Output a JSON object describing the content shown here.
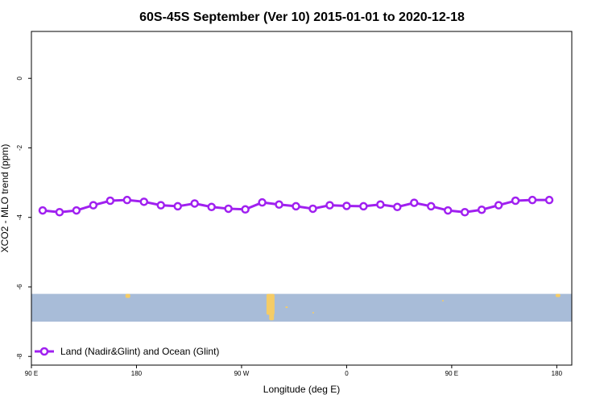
{
  "chart_data": {
    "type": "line",
    "title": "60S-45S September (Ver 10)   2015-01-01 to 2020-12-18",
    "xlabel": "Longitude (deg E)",
    "ylabel": "XCO2 - MLO trend (ppm)",
    "xlim": [
      90,
      450
    ],
    "ylim": [
      -8.25,
      1.35
    ],
    "x_ticks": [
      {
        "value": 90,
        "label": "90 E"
      },
      {
        "value": 160,
        "label": "180"
      },
      {
        "value": 230,
        "label": "90 W"
      },
      {
        "value": 300,
        "label": "0"
      },
      {
        "value": 370,
        "label": "90 E"
      },
      {
        "value": 440,
        "label": "180"
      }
    ],
    "y_ticks": [
      {
        "value": 0,
        "label": "0"
      },
      {
        "value": -2,
        "label": "-2"
      },
      {
        "value": -4,
        "label": "-4"
      },
      {
        "value": -6,
        "label": "-6"
      },
      {
        "value": -8,
        "label": "-8"
      }
    ],
    "series": [
      {
        "name": "Land (Nadir&Glint) and Ocean (Glint)",
        "color": "#a020f0",
        "x": [
          97.5,
          108.75,
          120,
          131.25,
          142.5,
          153.75,
          165,
          176.25,
          187.5,
          198.75,
          210,
          221.25,
          232.5,
          243.75,
          255,
          266.25,
          277.5,
          288.75,
          300,
          311.25,
          322.5,
          333.75,
          345,
          356.25,
          367.5,
          378.75,
          390,
          401.25,
          412.5,
          423.75,
          435
        ],
        "values": [
          -3.8,
          -3.85,
          -3.8,
          -3.65,
          -3.52,
          -3.5,
          -3.55,
          -3.65,
          -3.68,
          -3.6,
          -3.7,
          -3.75,
          -3.77,
          -3.57,
          -3.63,
          -3.68,
          -3.75,
          -3.65,
          -3.67,
          -3.68,
          -3.63,
          -3.7,
          -3.58,
          -3.68,
          -3.8,
          -3.85,
          -3.78,
          -3.65,
          -3.52,
          -3.5,
          -3.5
        ]
      }
    ],
    "map_band": {
      "lat_label": "60S-45S",
      "ymin": -7.0,
      "ymax": -6.2,
      "ocean_color": "#a8bcd8",
      "land_color": "#f5cc66"
    },
    "legend": {
      "position": "bottom-left"
    },
    "grid": false
  }
}
